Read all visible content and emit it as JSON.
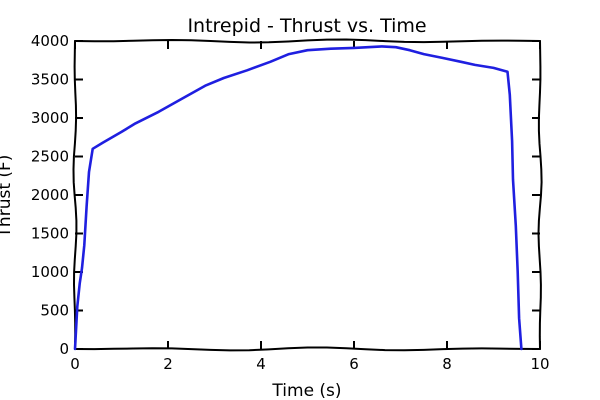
{
  "chart_data": {
    "type": "line",
    "title": "Intrepid - Thrust vs. Time",
    "xlabel": "Time (s)",
    "ylabel": "Thrust (F)",
    "xlim": [
      0,
      10
    ],
    "ylim": [
      0,
      4000
    ],
    "xticks": [
      "0",
      "2",
      "4",
      "6",
      "8",
      "10"
    ],
    "yticks": [
      "0",
      "500",
      "1000",
      "1500",
      "2000",
      "2500",
      "3000",
      "3500",
      "4000"
    ],
    "grid": false,
    "line_color": "#1f1fe0",
    "series": [
      {
        "x": [
          0.0,
          0.05,
          0.1,
          0.15,
          0.2,
          0.25,
          0.3,
          0.38,
          0.6,
          1.0,
          1.3,
          1.8,
          2.3,
          2.8,
          3.2,
          3.7,
          4.2,
          4.6,
          5.0,
          5.5,
          6.0,
          6.3,
          6.6,
          6.9,
          7.2,
          7.5,
          7.9,
          8.3,
          8.6,
          9.0,
          9.3,
          9.35,
          9.4,
          9.42,
          9.48,
          9.52,
          9.55,
          9.6
        ],
        "y": [
          0,
          550,
          850,
          1050,
          1350,
          1850,
          2300,
          2600,
          2680,
          2820,
          2930,
          3080,
          3250,
          3420,
          3520,
          3620,
          3730,
          3830,
          3880,
          3900,
          3910,
          3920,
          3930,
          3920,
          3880,
          3830,
          3780,
          3730,
          3690,
          3650,
          3600,
          3300,
          2700,
          2200,
          1600,
          1000,
          400,
          0
        ]
      }
    ]
  }
}
